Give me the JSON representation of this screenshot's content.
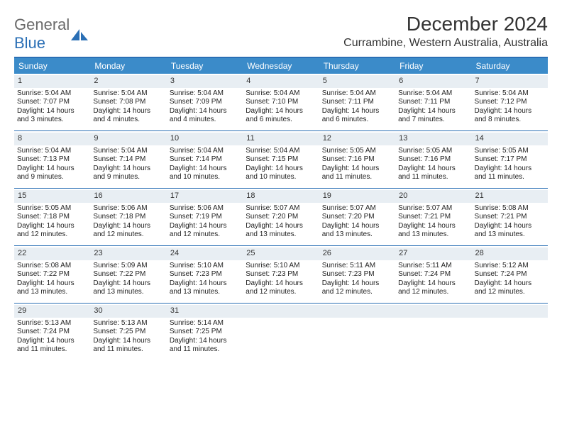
{
  "logo": {
    "text1": "General",
    "text2": "Blue"
  },
  "title": "December 2024",
  "location": "Currambine, Western Australia, Australia",
  "colors": {
    "header_bg": "#3b8bc9",
    "border": "#2a6fb5",
    "daynum_bg": "#e8eef3",
    "text": "#222222",
    "title_text": "#333333"
  },
  "dow": [
    "Sunday",
    "Monday",
    "Tuesday",
    "Wednesday",
    "Thursday",
    "Friday",
    "Saturday"
  ],
  "weeks": [
    [
      {
        "n": "1",
        "sr": "5:04 AM",
        "ss": "7:07 PM",
        "dl": "14 hours and 3 minutes."
      },
      {
        "n": "2",
        "sr": "5:04 AM",
        "ss": "7:08 PM",
        "dl": "14 hours and 4 minutes."
      },
      {
        "n": "3",
        "sr": "5:04 AM",
        "ss": "7:09 PM",
        "dl": "14 hours and 4 minutes."
      },
      {
        "n": "4",
        "sr": "5:04 AM",
        "ss": "7:10 PM",
        "dl": "14 hours and 6 minutes."
      },
      {
        "n": "5",
        "sr": "5:04 AM",
        "ss": "7:11 PM",
        "dl": "14 hours and 6 minutes."
      },
      {
        "n": "6",
        "sr": "5:04 AM",
        "ss": "7:11 PM",
        "dl": "14 hours and 7 minutes."
      },
      {
        "n": "7",
        "sr": "5:04 AM",
        "ss": "7:12 PM",
        "dl": "14 hours and 8 minutes."
      }
    ],
    [
      {
        "n": "8",
        "sr": "5:04 AM",
        "ss": "7:13 PM",
        "dl": "14 hours and 9 minutes."
      },
      {
        "n": "9",
        "sr": "5:04 AM",
        "ss": "7:14 PM",
        "dl": "14 hours and 9 minutes."
      },
      {
        "n": "10",
        "sr": "5:04 AM",
        "ss": "7:14 PM",
        "dl": "14 hours and 10 minutes."
      },
      {
        "n": "11",
        "sr": "5:04 AM",
        "ss": "7:15 PM",
        "dl": "14 hours and 10 minutes."
      },
      {
        "n": "12",
        "sr": "5:05 AM",
        "ss": "7:16 PM",
        "dl": "14 hours and 11 minutes."
      },
      {
        "n": "13",
        "sr": "5:05 AM",
        "ss": "7:16 PM",
        "dl": "14 hours and 11 minutes."
      },
      {
        "n": "14",
        "sr": "5:05 AM",
        "ss": "7:17 PM",
        "dl": "14 hours and 11 minutes."
      }
    ],
    [
      {
        "n": "15",
        "sr": "5:05 AM",
        "ss": "7:18 PM",
        "dl": "14 hours and 12 minutes."
      },
      {
        "n": "16",
        "sr": "5:06 AM",
        "ss": "7:18 PM",
        "dl": "14 hours and 12 minutes."
      },
      {
        "n": "17",
        "sr": "5:06 AM",
        "ss": "7:19 PM",
        "dl": "14 hours and 12 minutes."
      },
      {
        "n": "18",
        "sr": "5:07 AM",
        "ss": "7:20 PM",
        "dl": "14 hours and 13 minutes."
      },
      {
        "n": "19",
        "sr": "5:07 AM",
        "ss": "7:20 PM",
        "dl": "14 hours and 13 minutes."
      },
      {
        "n": "20",
        "sr": "5:07 AM",
        "ss": "7:21 PM",
        "dl": "14 hours and 13 minutes."
      },
      {
        "n": "21",
        "sr": "5:08 AM",
        "ss": "7:21 PM",
        "dl": "14 hours and 13 minutes."
      }
    ],
    [
      {
        "n": "22",
        "sr": "5:08 AM",
        "ss": "7:22 PM",
        "dl": "14 hours and 13 minutes."
      },
      {
        "n": "23",
        "sr": "5:09 AM",
        "ss": "7:22 PM",
        "dl": "14 hours and 13 minutes."
      },
      {
        "n": "24",
        "sr": "5:10 AM",
        "ss": "7:23 PM",
        "dl": "14 hours and 13 minutes."
      },
      {
        "n": "25",
        "sr": "5:10 AM",
        "ss": "7:23 PM",
        "dl": "14 hours and 12 minutes."
      },
      {
        "n": "26",
        "sr": "5:11 AM",
        "ss": "7:23 PM",
        "dl": "14 hours and 12 minutes."
      },
      {
        "n": "27",
        "sr": "5:11 AM",
        "ss": "7:24 PM",
        "dl": "14 hours and 12 minutes."
      },
      {
        "n": "28",
        "sr": "5:12 AM",
        "ss": "7:24 PM",
        "dl": "14 hours and 12 minutes."
      }
    ],
    [
      {
        "n": "29",
        "sr": "5:13 AM",
        "ss": "7:24 PM",
        "dl": "14 hours and 11 minutes."
      },
      {
        "n": "30",
        "sr": "5:13 AM",
        "ss": "7:25 PM",
        "dl": "14 hours and 11 minutes."
      },
      {
        "n": "31",
        "sr": "5:14 AM",
        "ss": "7:25 PM",
        "dl": "14 hours and 11 minutes."
      },
      {
        "empty": true
      },
      {
        "empty": true
      },
      {
        "empty": true
      },
      {
        "empty": true
      }
    ]
  ],
  "labels": {
    "sunrise": "Sunrise: ",
    "sunset": "Sunset: ",
    "daylight": "Daylight: "
  }
}
